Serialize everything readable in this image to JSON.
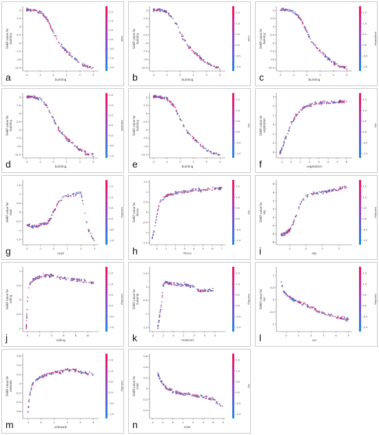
{
  "figure": {
    "panels": [
      {
        "letter": "a",
        "xlabel": "building",
        "ylabel": "SHAP value for\nbuilding",
        "clabel": "road",
        "xlim": [
          -2.3,
          3.4
        ],
        "xticks": [
          -2,
          -1,
          0,
          1,
          2,
          3
        ],
        "ylim": [
          -13.5,
          6.3
        ],
        "yticks": [
          5.0,
          2.5,
          0.0,
          -2.5,
          -5.0,
          -7.5,
          -10.0,
          -12.5
        ],
        "cticks": [
          1.5,
          1.0,
          0.5,
          0.0,
          -0.5,
          -1.0,
          -1.5
        ],
        "clim": [
          -1.7,
          1.8
        ],
        "shape": "sig_down"
      },
      {
        "letter": "b",
        "xlabel": "building",
        "ylabel": "SHAP value for\nbuilding",
        "clabel": "color",
        "xlim": [
          -2.3,
          3.4
        ],
        "xticks": [
          -2,
          -1,
          0,
          1,
          2,
          3
        ],
        "ylim": [
          -13.5,
          6.3
        ],
        "yticks": [
          5.0,
          2.5,
          0.0,
          -2.5,
          -5.0,
          -7.5,
          -10.0,
          -12.5
        ],
        "cticks": [
          1.5,
          1.0,
          0.5,
          0.0,
          -0.5,
          -1.0
        ],
        "clim": [
          -1.2,
          1.8
        ],
        "shape": "sig_down"
      },
      {
        "letter": "c",
        "xlabel": "building",
        "ylabel": "SHAP value for\nbuilding",
        "clabel": "vegetation",
        "xlim": [
          -2.3,
          3.4
        ],
        "xticks": [
          -2,
          -1,
          0,
          1,
          2,
          3
        ],
        "ylim": [
          -13.5,
          6.3
        ],
        "yticks": [
          5.0,
          2.5,
          0.0,
          -2.5,
          -5.0,
          -7.5,
          -10.0,
          -12.5
        ],
        "cticks": [
          1.5,
          1.0,
          0.5,
          0.0,
          -0.5,
          -1.0
        ],
        "clim": [
          -1.2,
          1.8
        ],
        "shape": "sig_down"
      },
      {
        "letter": "d",
        "xlabel": "building",
        "ylabel": "SHAP value for\nbuilding",
        "clabel": "sidewalk",
        "xlim": [
          -2.3,
          3.4
        ],
        "xticks": [
          -2,
          -1,
          0,
          1,
          2,
          3
        ],
        "ylim": [
          -13.5,
          6.3
        ],
        "yticks": [
          5.0,
          2.5,
          0.0,
          -2.5,
          -5.0,
          -7.5,
          -10.0,
          -12.5
        ],
        "cticks": [
          2.0,
          1.5,
          1.0,
          0.5,
          0.0,
          -0.5,
          -1.0
        ],
        "clim": [
          -1.1,
          2.1
        ],
        "shape": "sig_down"
      },
      {
        "letter": "e",
        "xlabel": "building",
        "ylabel": "SHAP value for\nbuilding",
        "clabel": "sky",
        "xlim": [
          -2.3,
          3.4
        ],
        "xticks": [
          -2,
          -1,
          0,
          1,
          2,
          3
        ],
        "ylim": [
          -13.5,
          6.3
        ],
        "yticks": [
          5.0,
          2.5,
          0.0,
          -2.5,
          -5.0,
          -7.5,
          -10.0,
          -12.5
        ],
        "cticks": [
          1.5,
          1.0,
          0.5,
          0.0,
          -0.5,
          -1.0
        ],
        "clim": [
          -1.2,
          1.8
        ],
        "shape": "sig_down"
      },
      {
        "letter": "f",
        "xlabel": "vegetation",
        "ylabel": "SHAP value for\nvegetation",
        "clabel": "sky",
        "xlim": [
          -1.6,
          6.6
        ],
        "xticks": [
          -1,
          0,
          1,
          2,
          3,
          4,
          5,
          6
        ],
        "ylim": [
          -3.6,
          3.4
        ],
        "yticks": [
          3,
          2,
          1,
          0,
          -1,
          -2,
          -3
        ],
        "cticks": [
          1.5,
          1.0,
          0.5,
          0.0,
          -0.5,
          -1.0
        ],
        "clim": [
          -1.2,
          1.8
        ],
        "shape": "sat_up"
      },
      {
        "letter": "g",
        "xlabel": "road",
        "ylabel": "SHAP value for\nroad",
        "clabel": "building",
        "xlim": [
          -2.3,
          3.3
        ],
        "xticks": [
          -2,
          -1,
          0,
          1,
          2,
          3
        ],
        "ylim": [
          -1.8,
          1.8
        ],
        "yticks": [
          1.5,
          1.0,
          0.5,
          0.0,
          -0.5,
          -1.0,
          -1.5
        ],
        "cticks": [
          1.5,
          1.0,
          0.5,
          0.0,
          -0.5,
          -1.0
        ],
        "clim": [
          -1.2,
          1.8
        ],
        "shape": "step_up"
      },
      {
        "letter": "h",
        "xlabel": "fence",
        "ylabel": "SHAP value for\nfence",
        "clabel": "sky",
        "xlim": [
          -0.8,
          7.4
        ],
        "xticks": [
          0,
          1,
          2,
          3,
          4,
          5,
          6,
          7
        ],
        "ylim": [
          -1.6,
          1.6
        ],
        "yticks": [
          1.5,
          1.0,
          0.5,
          0.0,
          -0.5,
          -1.0,
          -1.5
        ],
        "cticks": [
          1.5,
          1.0,
          0.5,
          0.0,
          -0.5,
          -1.0
        ],
        "clim": [
          -1.2,
          1.8
        ],
        "shape": "sat_up"
      },
      {
        "letter": "i",
        "xlabel": "sky",
        "ylabel": "SHAP value for\nsky",
        "clabel": "building",
        "xlim": [
          -1.8,
          2.8
        ],
        "xticks": [
          -1,
          0,
          1,
          2
        ],
        "ylim": [
          -8.6,
          7.0
        ],
        "yticks": [
          6,
          4,
          2,
          0,
          -2,
          -4,
          -6,
          -8
        ],
        "cticks": [
          1.5,
          1.0,
          0.5,
          0.0,
          -0.5,
          -1.0
        ],
        "clim": [
          -1.2,
          1.8
        ],
        "shape": "sig_up"
      },
      {
        "letter": "j",
        "xlabel": "railing",
        "ylabel": "SHAP value for\nrailing",
        "clabel": "building",
        "xlim": [
          -0.8,
          11.8
        ],
        "xticks": [
          0,
          2,
          4,
          6,
          8,
          10
        ],
        "ylim": [
          -1.1,
          1.15
        ],
        "yticks": [
          1.0,
          0.5,
          0.0,
          -0.5,
          -1.0
        ],
        "cticks": [
          1.5,
          1.0,
          0.5,
          0.0,
          -0.5,
          -1.0
        ],
        "clim": [
          -1.2,
          1.8
        ],
        "shape": "spike_up"
      },
      {
        "letter": "k",
        "xlabel": "material",
        "ylabel": "SHAP value for\nmaterial",
        "clabel": "building",
        "xlim": [
          -2.3,
          5.0
        ],
        "xticks": [
          -2,
          -1,
          0,
          1,
          2,
          3,
          4
        ],
        "ylim": [
          -1.65,
          0.75
        ],
        "yticks": [
          0.5,
          0.0,
          -0.5,
          -1.0,
          -1.5
        ],
        "cticks": [
          1.5,
          1.0,
          0.5,
          0.0,
          -0.5,
          -1.0
        ],
        "clim": [
          -1.2,
          1.8
        ],
        "shape": "flat_dip"
      },
      {
        "letter": "l",
        "xlabel": "car",
        "ylabel": "SHAP value for\ncar",
        "clabel": "building",
        "xlim": [
          -0.8,
          5.3
        ],
        "xticks": [
          0,
          1,
          2,
          3,
          4,
          5
        ],
        "ylim": [
          -1.3,
          1.35
        ],
        "yticks": [
          1.0,
          0.5,
          0.0,
          -0.5,
          -1.0
        ],
        "cticks": [
          1.5,
          1.0,
          0.5,
          0.0,
          -0.5,
          -1.0
        ],
        "clim": [
          -1.2,
          1.8
        ],
        "shape": "decay"
      },
      {
        "letter": "m",
        "xlabel": "sidewalk",
        "ylabel": "SHAP value for\nsidewalk",
        "clabel": "building",
        "xlim": [
          -1.4,
          4.4
        ],
        "xticks": [
          -1,
          0,
          1,
          2,
          3,
          4
        ],
        "ylim": [
          -0.75,
          0.65
        ],
        "yticks": [
          0.6,
          0.4,
          0.2,
          0.0,
          -0.2,
          -0.4,
          -0.6
        ],
        "cticks": [
          1.5,
          1.0,
          0.5,
          0.0,
          -0.5,
          -1.0
        ],
        "clim": [
          -1.2,
          1.8
        ],
        "shape": "rise"
      },
      {
        "letter": "n",
        "xlabel": "color",
        "ylabel": "SHAP value for\ncolor",
        "clabel": "sky",
        "xlim": [
          -2.3,
          5.2
        ],
        "xticks": [
          -2,
          -1,
          0,
          1,
          2,
          3,
          4,
          5
        ],
        "ylim": [
          -0.55,
          0.65
        ],
        "yticks": [
          0.6,
          0.4,
          0.2,
          0.0,
          -0.2,
          -0.4
        ],
        "cticks": [
          1.5,
          1.0,
          0.5,
          0.0,
          -0.5,
          -1.0
        ],
        "clim": [
          -1.2,
          1.8
        ],
        "shape": "fall"
      }
    ]
  },
  "chart_data": [
    {
      "type": "scatter",
      "panel": "a",
      "x_feature": "building",
      "ylabel": "SHAP value for\nbuilding",
      "color_feature": "road",
      "ylim": [
        -13.5,
        6.3
      ],
      "x": [
        -2.0,
        -1.5,
        -1.0,
        -0.5,
        -0.25,
        0.0,
        0.25,
        0.5,
        1.0,
        1.5,
        2.0,
        2.5,
        3.0
      ],
      "y": [
        5.2,
        5.1,
        4.6,
        2.6,
        0.6,
        -1.7,
        -3.6,
        -5.3,
        -7.6,
        -9.4,
        -11.0,
        -12.1,
        -12.6
      ]
    },
    {
      "type": "scatter",
      "panel": "b",
      "x_feature": "building",
      "ylabel": "SHAP value for\nbuilding",
      "color_feature": "color",
      "ylim": [
        -13.5,
        6.3
      ],
      "x": [
        -2.0,
        -1.5,
        -1.0,
        -0.5,
        -0.25,
        0.0,
        0.25,
        0.5,
        1.0,
        1.5,
        2.0,
        2.5,
        3.0
      ],
      "y": [
        5.2,
        5.1,
        4.6,
        2.6,
        0.6,
        -1.7,
        -3.6,
        -5.3,
        -7.6,
        -9.4,
        -11.0,
        -12.1,
        -12.6
      ]
    },
    {
      "type": "scatter",
      "panel": "c",
      "x_feature": "building",
      "ylabel": "SHAP value for\nbuilding",
      "color_feature": "vegetation",
      "ylim": [
        -13.5,
        6.3
      ],
      "x": [
        -2.0,
        -1.5,
        -1.0,
        -0.5,
        -0.25,
        0.0,
        0.25,
        0.5,
        1.0,
        1.5,
        2.0,
        2.5,
        3.0
      ],
      "y": [
        5.2,
        5.1,
        4.6,
        2.6,
        0.6,
        -1.7,
        -3.6,
        -5.3,
        -7.6,
        -9.4,
        -11.0,
        -12.1,
        -12.6
      ]
    },
    {
      "type": "scatter",
      "panel": "d",
      "x_feature": "building",
      "ylabel": "SHAP value for\nbuilding",
      "color_feature": "sidewalk",
      "ylim": [
        -13.5,
        6.3
      ],
      "x": [
        -2.0,
        -1.5,
        -1.0,
        -0.5,
        -0.25,
        0.0,
        0.25,
        0.5,
        1.0,
        1.5,
        2.0,
        2.5,
        3.0
      ],
      "y": [
        5.2,
        5.1,
        4.6,
        2.6,
        0.6,
        -1.7,
        -3.6,
        -5.3,
        -7.6,
        -9.4,
        -11.0,
        -12.1,
        -12.6
      ]
    },
    {
      "type": "scatter",
      "panel": "e",
      "x_feature": "building",
      "ylabel": "SHAP value for\nbuilding",
      "color_feature": "sky",
      "ylim": [
        -13.5,
        6.3
      ],
      "x": [
        -2.0,
        -1.5,
        -1.0,
        -0.5,
        -0.25,
        0.0,
        0.25,
        0.5,
        1.0,
        1.5,
        2.0,
        2.5,
        3.0
      ],
      "y": [
        5.2,
        5.1,
        4.6,
        2.6,
        0.6,
        -1.7,
        -3.6,
        -5.3,
        -7.6,
        -9.4,
        -11.0,
        -12.1,
        -12.6
      ]
    },
    {
      "type": "scatter",
      "panel": "f",
      "x_feature": "vegetation",
      "ylabel": "SHAP value for\nvegetation",
      "color_feature": "sky",
      "ylim": [
        -3.6,
        3.4
      ],
      "x": [
        -1.2,
        -1.0,
        -0.75,
        -0.5,
        -0.25,
        0.0,
        0.5,
        1.0,
        1.5,
        2.0,
        3.0,
        4.0,
        6.0
      ],
      "y": [
        -3.1,
        -2.6,
        -1.9,
        -1.2,
        -0.6,
        0.1,
        0.9,
        1.6,
        1.9,
        2.1,
        2.3,
        2.4,
        2.5
      ]
    },
    {
      "type": "scatter",
      "panel": "g",
      "x_feature": "road",
      "ylabel": "SHAP value for\nroad",
      "color_feature": "building",
      "ylim": [
        -1.8,
        1.8
      ],
      "x": [
        -2.0,
        -1.5,
        -1.0,
        -0.5,
        -0.2,
        0.0,
        0.3,
        0.6,
        1.0,
        1.5,
        2.0,
        2.5,
        3.0
      ],
      "y": [
        -0.7,
        -0.8,
        -0.7,
        -0.6,
        -0.3,
        0.1,
        0.5,
        0.8,
        0.9,
        1.0,
        1.1,
        -0.9,
        -1.6
      ]
    },
    {
      "type": "scatter",
      "panel": "h",
      "x_feature": "fence",
      "ylabel": "SHAP value for\nfence",
      "color_feature": "sky",
      "ylim": [
        -1.6,
        1.6
      ],
      "x": [
        -0.5,
        -0.3,
        -0.1,
        0.0,
        0.2,
        0.5,
        1.0,
        1.5,
        2.0,
        3.0,
        4.0,
        5.0,
        7.0
      ],
      "y": [
        -1.3,
        -0.9,
        -0.4,
        -0.1,
        0.3,
        0.6,
        0.8,
        0.9,
        0.95,
        1.0,
        1.1,
        1.1,
        1.2
      ]
    },
    {
      "type": "scatter",
      "panel": "i",
      "x_feature": "sky",
      "ylabel": "SHAP value for\nsky",
      "color_feature": "building",
      "ylim": [
        -8.6,
        7.0
      ],
      "x": [
        -1.5,
        -1.25,
        -1.0,
        -0.8,
        -0.6,
        -0.4,
        -0.2,
        0.0,
        0.5,
        1.0,
        1.5,
        2.0,
        2.5
      ],
      "y": [
        -6.3,
        -5.9,
        -5.1,
        -3.7,
        -1.7,
        0.6,
        2.3,
        3.1,
        3.7,
        4.0,
        4.4,
        4.9,
        5.4
      ]
    },
    {
      "type": "scatter",
      "panel": "j",
      "x_feature": "railing",
      "ylabel": "SHAP value for\nrailing",
      "color_feature": "building",
      "ylim": [
        -1.1,
        1.15
      ],
      "x": [
        -0.2,
        -0.1,
        0.0,
        0.2,
        0.5,
        1.0,
        2.0,
        3.0,
        4.0,
        5.0,
        6.0,
        8.0,
        11.0
      ],
      "y": [
        -0.95,
        -0.5,
        0.05,
        0.45,
        0.6,
        0.7,
        0.8,
        0.85,
        0.85,
        0.8,
        0.75,
        0.7,
        0.6
      ]
    },
    {
      "type": "scatter",
      "panel": "k",
      "x_feature": "material",
      "ylabel": "SHAP value for\nmaterial",
      "color_feature": "building",
      "ylim": [
        -1.65,
        0.75
      ],
      "x": [
        -1.5,
        -1.3,
        -1.1,
        -1.0,
        -0.8,
        -0.5,
        0.0,
        0.5,
        1.0,
        1.5,
        2.0,
        2.5,
        4.0
      ],
      "y": [
        -1.5,
        -1.0,
        -0.5,
        0.05,
        0.15,
        0.15,
        0.1,
        0.08,
        0.1,
        0.05,
        0.0,
        -0.15,
        -0.1
      ]
    },
    {
      "type": "scatter",
      "panel": "l",
      "x_feature": "car",
      "ylabel": "SHAP value for\ncar",
      "color_feature": "building",
      "ylim": [
        -1.3,
        1.35
      ],
      "x": [
        -0.4,
        -0.3,
        -0.2,
        0.0,
        0.3,
        0.6,
        1.0,
        1.5,
        2.0,
        2.5,
        3.0,
        4.0,
        5.0
      ],
      "y": [
        0.7,
        0.5,
        0.35,
        0.2,
        0.1,
        0.0,
        -0.1,
        -0.2,
        -0.3,
        -0.45,
        -0.55,
        -0.7,
        -0.8
      ]
    },
    {
      "type": "scatter",
      "panel": "m",
      "x_feature": "sidewalk",
      "ylabel": "SHAP value for\nsidewalk",
      "color_feature": "building",
      "ylim": [
        -0.75,
        0.65
      ],
      "x": [
        -1.0,
        -0.9,
        -0.7,
        -0.5,
        -0.25,
        0.0,
        0.5,
        1.0,
        1.5,
        2.0,
        2.5,
        3.0,
        4.0
      ],
      "y": [
        -0.6,
        -0.3,
        -0.05,
        0.05,
        0.1,
        0.15,
        0.2,
        0.25,
        0.25,
        0.3,
        0.3,
        0.25,
        0.2
      ]
    },
    {
      "type": "scatter",
      "panel": "n",
      "x_feature": "color",
      "ylabel": "SHAP value for\ncolor",
      "color_feature": "sky",
      "ylim": [
        -0.55,
        0.65
      ],
      "x": [
        -1.5,
        -1.2,
        -1.0,
        -0.5,
        0.0,
        0.5,
        1.0,
        1.5,
        2.0,
        2.5,
        3.0,
        4.0,
        5.0
      ],
      "y": [
        0.3,
        0.15,
        0.1,
        0.0,
        -0.05,
        -0.08,
        -0.1,
        -0.1,
        -0.12,
        -0.14,
        -0.15,
        -0.2,
        -0.35
      ]
    }
  ]
}
